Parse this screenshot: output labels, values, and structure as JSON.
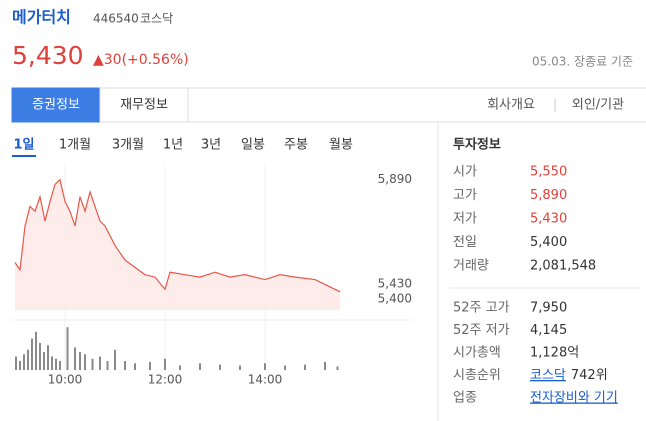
{
  "header": {
    "name": "메가터치",
    "code": "446540",
    "market": "코스닥",
    "price": "5,430",
    "change": "▲30(+0.56%)",
    "time": "05.03. 장종료 기준"
  },
  "tabs": [
    "증권정보",
    "재무정보"
  ],
  "selected_tab": 0,
  "links": [
    "회사개요",
    "외인/기관"
  ],
  "periods": [
    "1일",
    "1개월",
    "3개월",
    "1년",
    "3년",
    "일봉",
    "주봉",
    "월봉"
  ],
  "selected_period": 0,
  "info": {
    "title": "투자정보",
    "rows": [
      {
        "label": "시가",
        "value": "5,550",
        "color": "#e0403a"
      },
      {
        "label": "고가",
        "value": "5,890",
        "color": "#e0403a"
      },
      {
        "label": "저가",
        "value": "5,430",
        "color": "#e0403a"
      },
      {
        "label": "전일",
        "value": "5,400"
      },
      {
        "label": "거래량",
        "value": "2,081,548"
      }
    ],
    "rows2": [
      {
        "label": "52주 고가",
        "value": "7,950"
      },
      {
        "label": "52주 저가",
        "value": "4,145"
      },
      {
        "label": "시가총액",
        "value": "1,128억"
      },
      {
        "label": "시총순위",
        "link": "코스닥",
        "value": "742위"
      },
      {
        "label": "업종",
        "link": "전자장비와 기기"
      }
    ]
  },
  "chart_data": [
    {
      "type": "line",
      "color": "#e8574a",
      "fill": "#fdecea",
      "x": [
        9.0,
        9.1,
        9.2,
        9.3,
        9.4,
        9.5,
        9.6,
        9.7,
        9.8,
        9.9,
        10.0,
        10.1,
        10.2,
        10.3,
        10.4,
        10.5,
        10.6,
        10.7,
        10.8,
        11.0,
        11.2,
        11.4,
        11.6,
        11.8,
        12.0,
        12.1,
        12.4,
        12.7,
        13.0,
        13.3,
        13.6,
        14.0,
        14.3,
        14.6,
        15.0,
        15.2,
        15.4,
        15.5
      ],
      "values": [
        5550,
        5520,
        5700,
        5780,
        5760,
        5820,
        5720,
        5800,
        5870,
        5890,
        5800,
        5760,
        5700,
        5820,
        5760,
        5840,
        5780,
        5720,
        5700,
        5620,
        5560,
        5530,
        5500,
        5490,
        5440,
        5510,
        5500,
        5490,
        5510,
        5490,
        5500,
        5480,
        5500,
        5490,
        5480,
        5460,
        5440,
        5430
      ],
      "xlim": [
        9,
        17
      ],
      "ylim": [
        5355,
        5950
      ],
      "yticks": [
        {
          "value": 5890,
          "label": "5,890"
        },
        {
          "value": 5430,
          "label": "5,430"
        },
        {
          "value": 5400,
          "label": "5,400"
        }
      ],
      "xticks": [
        {
          "value": 10,
          "label": "10:00"
        },
        {
          "value": 12,
          "label": "12:00"
        },
        {
          "value": 14,
          "label": "14:00"
        }
      ],
      "grid": true
    },
    {
      "type": "bar",
      "color": "#8a8a8a",
      "x": [
        9.02,
        9.1,
        9.18,
        9.26,
        9.34,
        9.42,
        9.5,
        9.58,
        9.66,
        9.74,
        9.82,
        9.9,
        10.05,
        10.2,
        10.3,
        10.4,
        10.55,
        10.7,
        10.85,
        11.0,
        11.2,
        11.4,
        11.7,
        12.0,
        12.3,
        12.7,
        13.1,
        13.5,
        14.0,
        14.4,
        14.8,
        15.2,
        15.45
      ],
      "values": [
        30,
        20,
        35,
        45,
        70,
        85,
        60,
        40,
        55,
        30,
        25,
        20,
        95,
        50,
        40,
        35,
        25,
        30,
        20,
        45,
        20,
        15,
        18,
        25,
        10,
        15,
        12,
        10,
        15,
        10,
        12,
        18,
        8
      ],
      "xlim": [
        9,
        17
      ],
      "ylim": [
        0,
        100
      ]
    }
  ]
}
